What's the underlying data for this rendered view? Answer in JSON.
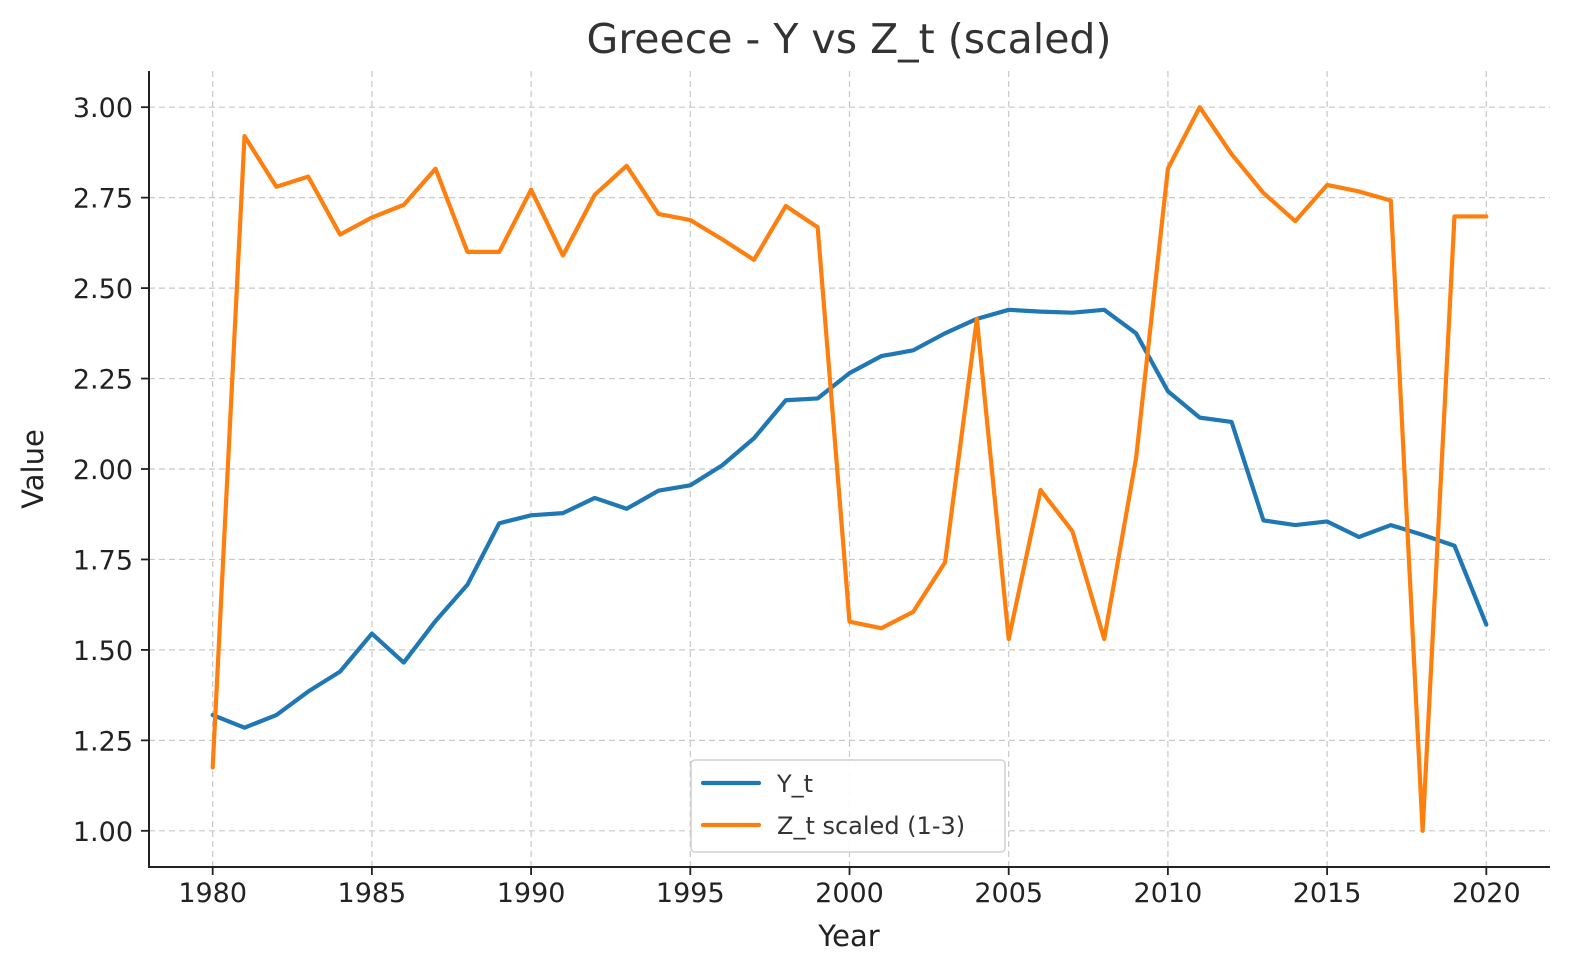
{
  "chart_data": {
    "type": "line",
    "title": "Greece - Y vs Z_t (scaled)",
    "xlabel": "Year",
    "ylabel": "Value",
    "xlim": [
      1978,
      2022
    ],
    "ylim": [
      0.9,
      3.1
    ],
    "xticks": [
      1980,
      1985,
      1990,
      1995,
      2000,
      2005,
      2010,
      2015,
      2020
    ],
    "yticks": [
      1.0,
      1.25,
      1.5,
      1.75,
      2.0,
      2.25,
      2.5,
      2.75,
      3.0
    ],
    "yticks_labels": [
      "1.00",
      "1.25",
      "1.50",
      "1.75",
      "2.00",
      "2.25",
      "2.50",
      "2.75",
      "3.00"
    ],
    "grid": true,
    "legend_position": "bottom-center",
    "x": [
      1980,
      1981,
      1982,
      1983,
      1984,
      1985,
      1986,
      1987,
      1988,
      1989,
      1990,
      1991,
      1992,
      1993,
      1994,
      1995,
      1996,
      1997,
      1998,
      1999,
      2000,
      2001,
      2002,
      2003,
      2004,
      2005,
      2006,
      2007,
      2008,
      2009,
      2010,
      2011,
      2012,
      2013,
      2014,
      2015,
      2016,
      2017,
      2018,
      2019,
      2020
    ],
    "series": [
      {
        "name": "Y_t",
        "color": "#1f77b4",
        "values": [
          1.32,
          1.285,
          1.32,
          1.385,
          1.44,
          1.545,
          1.465,
          1.58,
          1.68,
          1.85,
          1.872,
          1.878,
          1.92,
          1.89,
          1.94,
          1.955,
          2.01,
          2.085,
          2.19,
          2.195,
          2.265,
          2.312,
          2.328,
          2.375,
          2.415,
          2.44,
          2.435,
          2.432,
          2.44,
          2.375,
          2.215,
          2.142,
          2.13,
          1.858,
          1.845,
          1.855,
          1.812,
          1.845,
          1.818,
          1.788,
          1.57
        ]
      },
      {
        "name": "Z_t scaled (1-3)",
        "color": "#ff7f0e",
        "values": [
          1.175,
          2.92,
          2.78,
          2.808,
          2.648,
          2.695,
          2.73,
          2.83,
          2.6,
          2.6,
          2.772,
          2.59,
          2.758,
          2.838,
          2.705,
          2.688,
          2.635,
          2.578,
          2.727,
          2.668,
          1.578,
          1.56,
          1.605,
          1.742,
          2.415,
          1.53,
          1.942,
          1.828,
          1.53,
          2.03,
          2.83,
          3.0,
          2.87,
          2.763,
          2.685,
          2.785,
          2.767,
          2.742,
          1.0,
          2.698,
          2.698
        ]
      }
    ]
  }
}
